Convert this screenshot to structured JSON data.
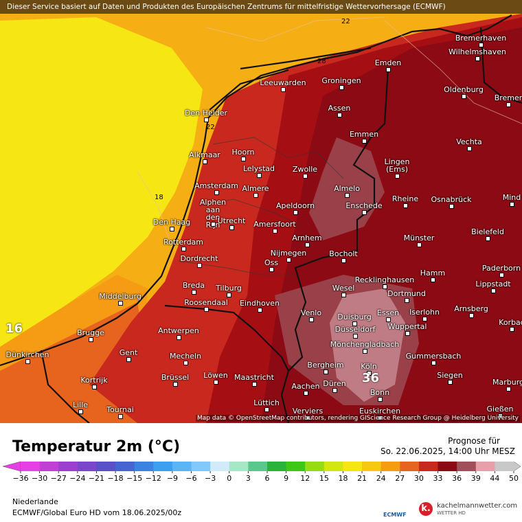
{
  "banner": "Dieser Service basiert auf Daten und Produkten des Europäischen Zentrums für mittelfristige Wettervorhersage (ECMWF)",
  "map": {
    "cities": [
      "Bremerhaven",
      "Wilhelmshaven",
      "Emden",
      "Oldenburg",
      "Bremer",
      "Leeuwarden",
      "Groningen",
      "Assen",
      "Den Helder",
      "Emmen",
      "Vechta",
      "Hoorn",
      "Alkmaar",
      "Lingen (Ems)",
      "Lelystad",
      "Zwolle",
      "Amsterdam",
      "Almere",
      "Almelo",
      "Apeldoorn",
      "Enschede",
      "Rheine",
      "Osnabrück",
      "Mind",
      "Alphen aan den Rijn",
      "Den Haag",
      "Utrecht",
      "Amersfoort",
      "Arnhem",
      "Münster",
      "Bielefeld",
      "Rotterdam",
      "Nijmegen",
      "Bocholt",
      "Dordrecht",
      "Oss",
      "Paderborn",
      "Hamm",
      "Recklinghausen",
      "Lippstadt",
      "Breda",
      "Tilburg",
      "Wesel",
      "Middelburg",
      "Dortmund",
      "Roosendaal",
      "Eindhoven",
      "Venlo",
      "Duisburg",
      "Essen",
      "Iserlohn",
      "Arnsberg",
      "Korbac",
      "Brugge",
      "Antwerpen",
      "Düsseldorf",
      "Wuppertal",
      "Mönchengladbach",
      "Gent",
      "Mecheln",
      "Gummersbach",
      "Dünkirchen",
      "Bergheim",
      "Köln",
      "Kortrijk",
      "Brüssel",
      "Löwen",
      "Maastricht",
      "Siegen",
      "Aachen",
      "Düren",
      "Marburg",
      "Bonn",
      "Lille",
      "Tournai",
      "Lüttich",
      "Gießen",
      "Verviers",
      "Euskirchen"
    ],
    "contour_labels": [
      22,
      28,
      22,
      18,
      16,
      36
    ],
    "attribution": "Map data © OpenStreetMap contributors, rendering GIScience Research Group @ Heidelberg University"
  },
  "legend": {
    "title": "Temperatur 2m (°C)",
    "ticks": [
      -36,
      -30,
      -27,
      -24,
      -21,
      -18,
      -15,
      -12,
      -9,
      -6,
      -3,
      0,
      3,
      6,
      9,
      12,
      15,
      18,
      21,
      24,
      27,
      30,
      33,
      36,
      39,
      44,
      50
    ],
    "colors": [
      "#e63fe6",
      "#c23fd6",
      "#9b3fd0",
      "#7a46cc",
      "#5a50c8",
      "#4664d2",
      "#3c82e0",
      "#3ca0f0",
      "#5ab4f5",
      "#82c8fa",
      "#d2ebfa",
      "#a8e6c8",
      "#5ac88c",
      "#28b43c",
      "#3cc814",
      "#96dc14",
      "#d2e614",
      "#f5e614",
      "#f5c814",
      "#f59b14",
      "#e6641e",
      "#c8281e",
      "#8c0a14",
      "#a0505a",
      "#e6a0aa",
      "#c8c8c8"
    ]
  },
  "forecast": {
    "label": "Prognose für",
    "time": "So. 22.06.2025, 14:00 Uhr MESZ"
  },
  "region": "Niederlande",
  "model": "ECMWF/Global Euro HD vom 18.06.2025/00z",
  "logos": {
    "ecmwf": "ECMWF",
    "site": "kachelmannwetter.com",
    "sub": "WETTER HD",
    "icon": "k."
  }
}
